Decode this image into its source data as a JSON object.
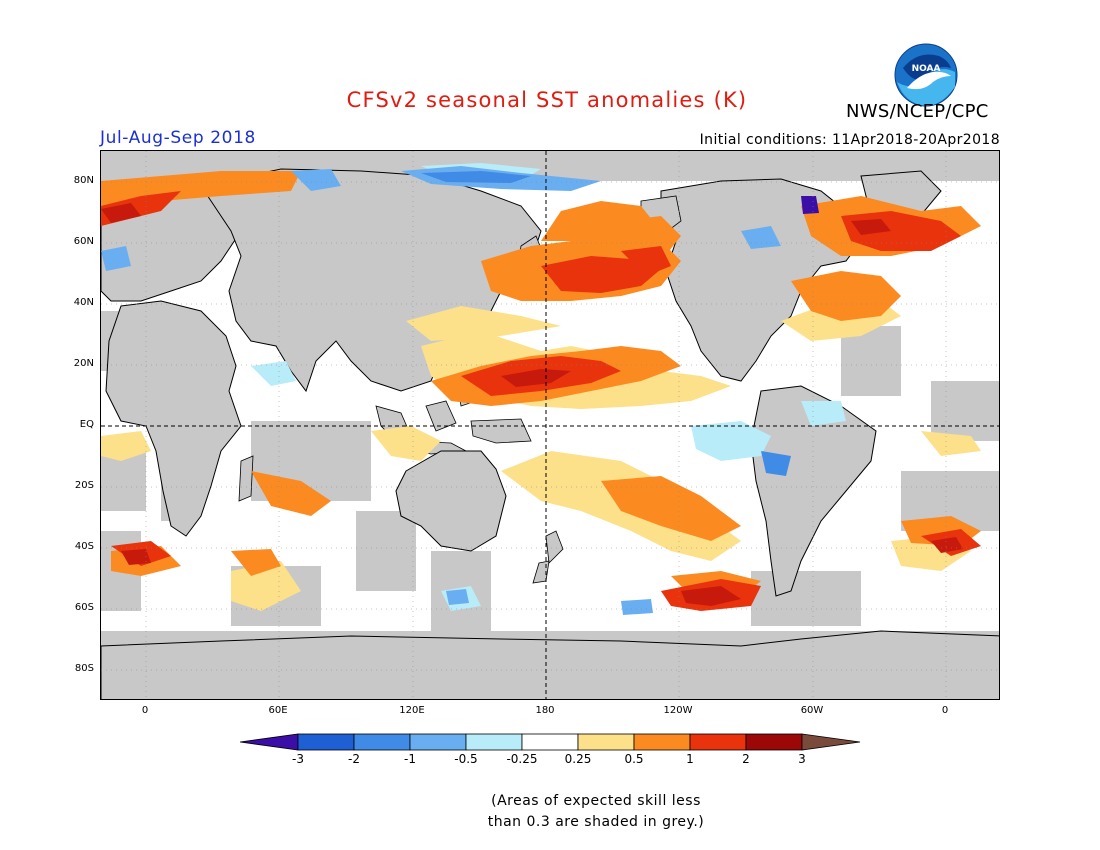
{
  "header": {
    "title": "CFSv2 seasonal SST anomalies (K)",
    "organization": "NWS/NCEP/CPC",
    "logo_text": "NOAA",
    "period": "Jul-Aug-Sep 2018",
    "initial_conditions": "Initial conditions: 11Apr2018-20Apr2018"
  },
  "map": {
    "latitude_labels": [
      "80N",
      "60N",
      "40N",
      "20N",
      "EQ",
      "20S",
      "40S",
      "60S",
      "80S"
    ],
    "longitude_labels": [
      "0",
      "60E",
      "120E",
      "180",
      "120W",
      "60W",
      "0"
    ],
    "ocean_default_color": "#ffffff",
    "land_color": "#c8c8c8",
    "low_skill_color": "#c8c8c8"
  },
  "legend": {
    "tick_labels": [
      "-3",
      "-2",
      "-1",
      "-0.5",
      "-0.25",
      "0.25",
      "0.5",
      "1",
      "2",
      "3"
    ],
    "colors": [
      "#3b0ea8",
      "#1e5fd4",
      "#3f8be6",
      "#69aef0",
      "#b8ecf8",
      "#ffffff",
      "#fce08a",
      "#fb8a21",
      "#e8330c",
      "#c71a0c",
      "#9c0708",
      "#7a4a3a"
    ],
    "units": "K"
  },
  "note": {
    "line1": "(Areas of expected skill less",
    "line2": "than 0.3 are shaded in grey.)"
  }
}
